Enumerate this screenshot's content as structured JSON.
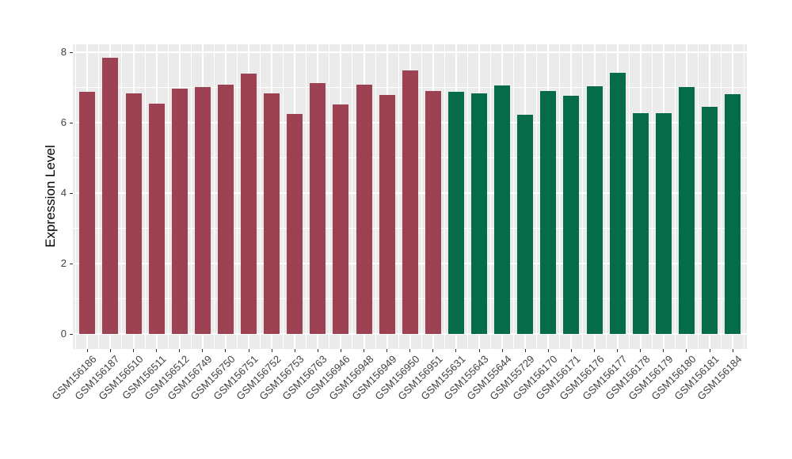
{
  "chart_data": {
    "type": "bar",
    "title": "",
    "xlabel": "",
    "ylabel": "Expression Level",
    "ylim": [
      0,
      8
    ],
    "yticks": [
      0,
      2,
      4,
      6,
      8
    ],
    "yticks_minor": [
      1,
      3,
      5,
      7
    ],
    "grid": "major and minor white gridlines on gray panel",
    "legend_position": "none",
    "panel_background": "#EBEBEB",
    "gridline_color": "#FFFFFF",
    "axis_text_color": "#404040",
    "axis_title_color": "#000000",
    "group_colors": {
      "group1": "#9C4252",
      "group2": "#056B48"
    },
    "categories": [
      "GSM156186",
      "GSM156187",
      "GSM156510",
      "GSM156511",
      "GSM156512",
      "GSM156749",
      "GSM156750",
      "GSM156751",
      "GSM156752",
      "GSM156753",
      "GSM156763",
      "GSM156946",
      "GSM156948",
      "GSM156949",
      "GSM156950",
      "GSM156951",
      "GSM155631",
      "GSM155643",
      "GSM155644",
      "GSM155729",
      "GSM156170",
      "GSM156171",
      "GSM156176",
      "GSM156177",
      "GSM156178",
      "GSM156179",
      "GSM156180",
      "GSM156181",
      "GSM156184"
    ],
    "values": [
      6.89,
      7.84,
      6.85,
      6.55,
      6.97,
      7.02,
      7.09,
      7.41,
      6.84,
      6.25,
      7.14,
      6.52,
      7.09,
      6.79,
      7.49,
      6.91,
      6.88,
      6.85,
      7.06,
      6.23,
      6.91,
      6.77,
      7.05,
      7.42,
      6.27,
      6.27,
      7.01,
      6.45,
      6.82
    ],
    "groups": [
      "group1",
      "group1",
      "group1",
      "group1",
      "group1",
      "group1",
      "group1",
      "group1",
      "group1",
      "group1",
      "group1",
      "group1",
      "group1",
      "group1",
      "group1",
      "group1",
      "group2",
      "group2",
      "group2",
      "group2",
      "group2",
      "group2",
      "group2",
      "group2",
      "group2",
      "group2",
      "group2",
      "group2",
      "group2"
    ]
  }
}
